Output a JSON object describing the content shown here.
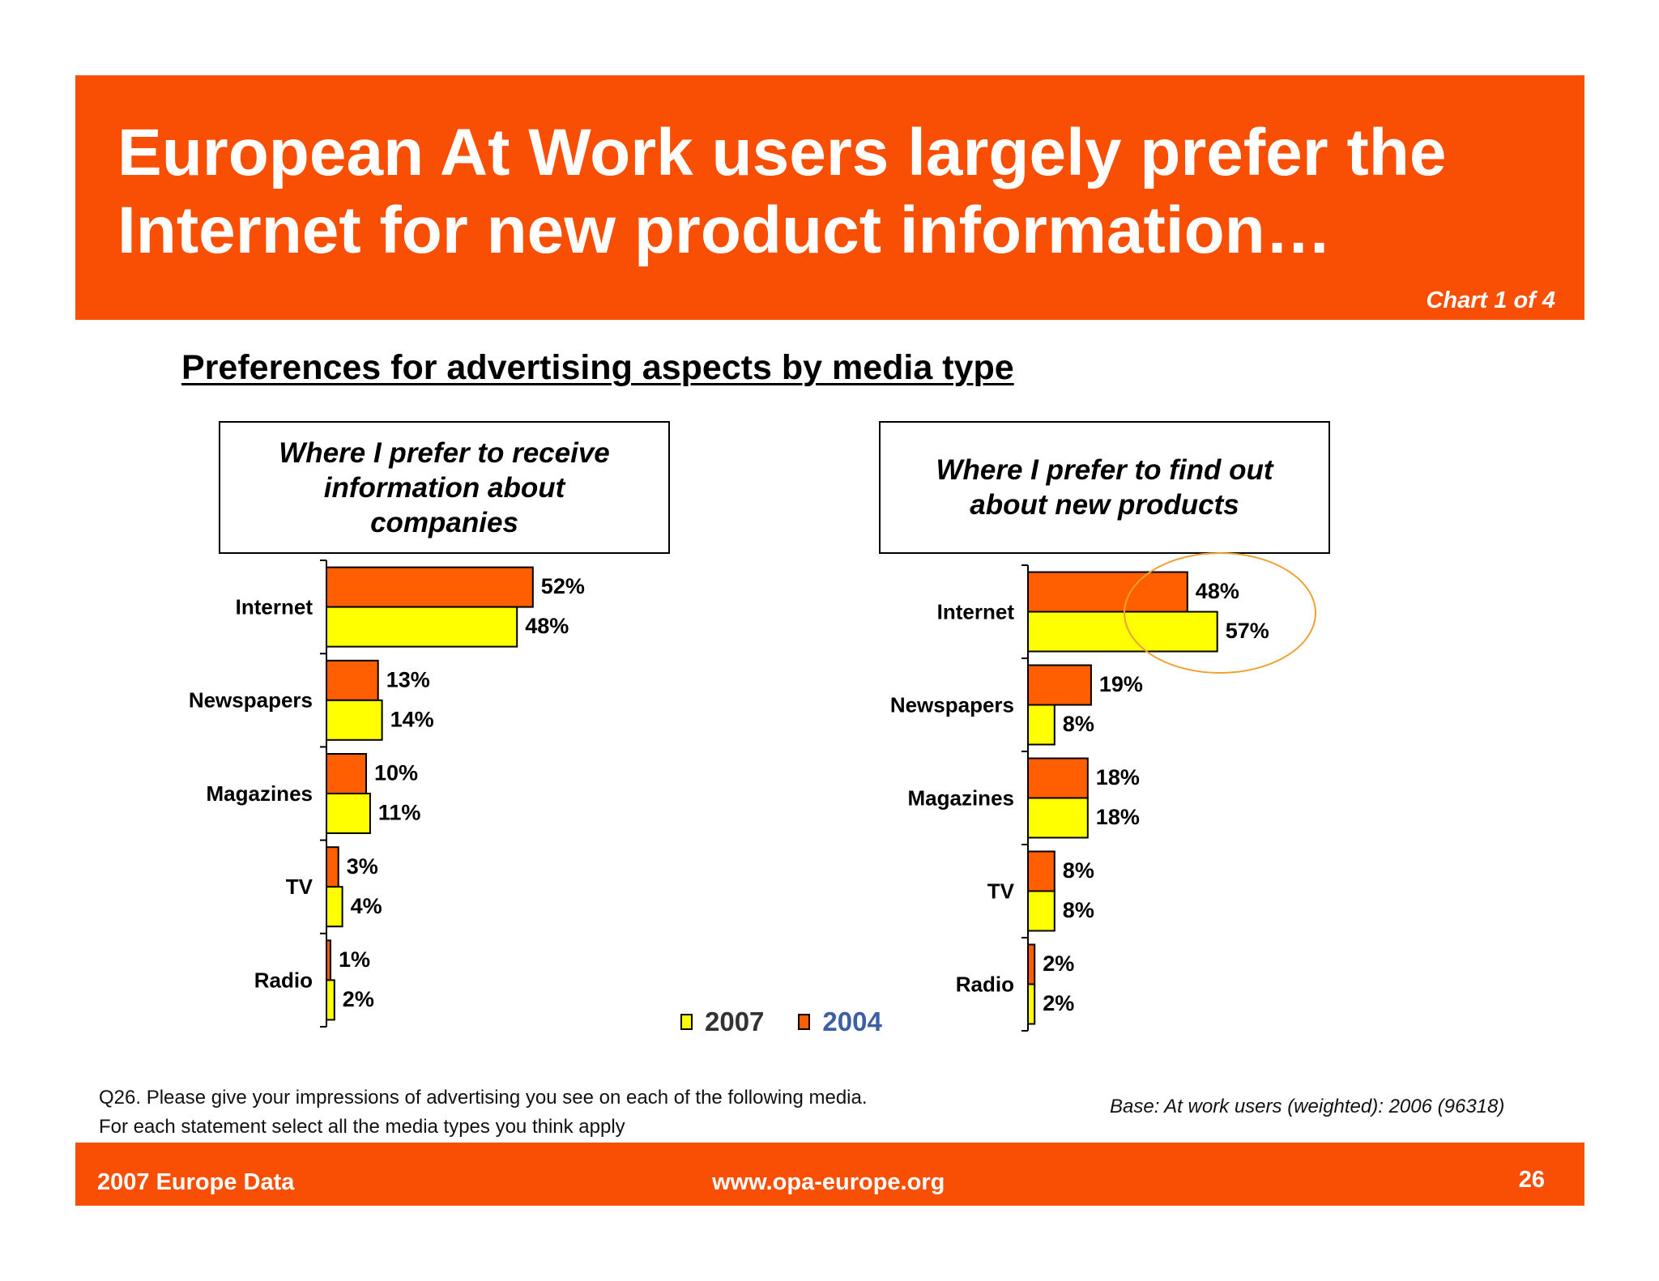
{
  "header": {
    "title": "European At Work users largely prefer the Internet for new product information…",
    "chart_counter": "Chart 1 of 4"
  },
  "subtitle": "Preferences for advertising aspects by media type",
  "colors": {
    "accent": "#f94f05",
    "bar_2004": "#ff5f00",
    "bar_2007": "#ffff00",
    "highlight_circle": "#f0a030"
  },
  "legend": {
    "label_2007": "2007",
    "label_2004": "2004"
  },
  "chart_data": [
    {
      "type": "bar",
      "orientation": "horizontal",
      "title": "Where I prefer to receive information about companies",
      "categories": [
        "Internet",
        "Newspapers",
        "Magazines",
        "TV",
        "Radio"
      ],
      "series": [
        {
          "name": "2004",
          "values": [
            52,
            13,
            10,
            3,
            1
          ],
          "labels": [
            "52%",
            "13%",
            "10%",
            "3%",
            "1%"
          ]
        },
        {
          "name": "2007",
          "values": [
            48,
            14,
            11,
            4,
            2
          ],
          "labels": [
            "48%",
            "14%",
            "11%",
            "4%",
            "2%"
          ]
        }
      ],
      "legend": "bottom"
    },
    {
      "type": "bar",
      "orientation": "horizontal",
      "title": "Where I prefer to find out about new products",
      "categories": [
        "Internet",
        "Newspapers",
        "Magazines",
        "TV",
        "Radio"
      ],
      "series": [
        {
          "name": "2004",
          "values": [
            48,
            19,
            18,
            8,
            2
          ],
          "labels": [
            "48%",
            "19%",
            "18%",
            "8%",
            "2%"
          ]
        },
        {
          "name": "2007",
          "values": [
            57,
            8,
            18,
            8,
            2
          ],
          "labels": [
            "57%",
            "8%",
            "18%",
            "8%",
            "2%"
          ]
        }
      ],
      "highlight_category": "Internet",
      "legend": "bottom"
    }
  ],
  "notes": {
    "question_line1": "Q26. Please give your impressions of advertising you see on each of the following media.",
    "question_line2": "For each statement select all the media types you think apply",
    "base": "Base: At work users (weighted): 2006 (96318)"
  },
  "footer": {
    "left": "2007 Europe Data",
    "center": "www.opa-europe.org",
    "page_number": "26"
  }
}
